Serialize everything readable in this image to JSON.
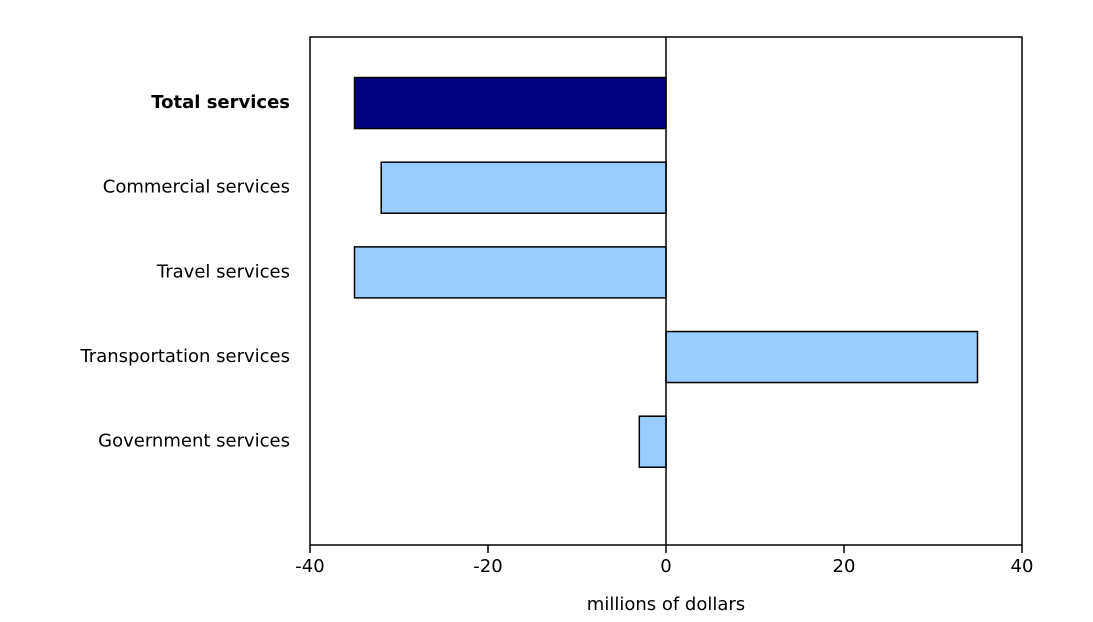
{
  "chart_data": {
    "type": "hbar",
    "categories": [
      "Total services",
      "Commercial services",
      "Travel services",
      "Transportation services",
      "Government services"
    ],
    "values": [
      -35,
      -32,
      -35,
      35,
      -3
    ],
    "colors": [
      "#000080",
      "#99ccff",
      "#99ccff",
      "#99ccff",
      "#99ccff"
    ],
    "x_label": "millions of dollars",
    "xlim": [
      -40,
      40
    ],
    "xticks": [
      -40,
      -20,
      0,
      20,
      40
    ]
  }
}
